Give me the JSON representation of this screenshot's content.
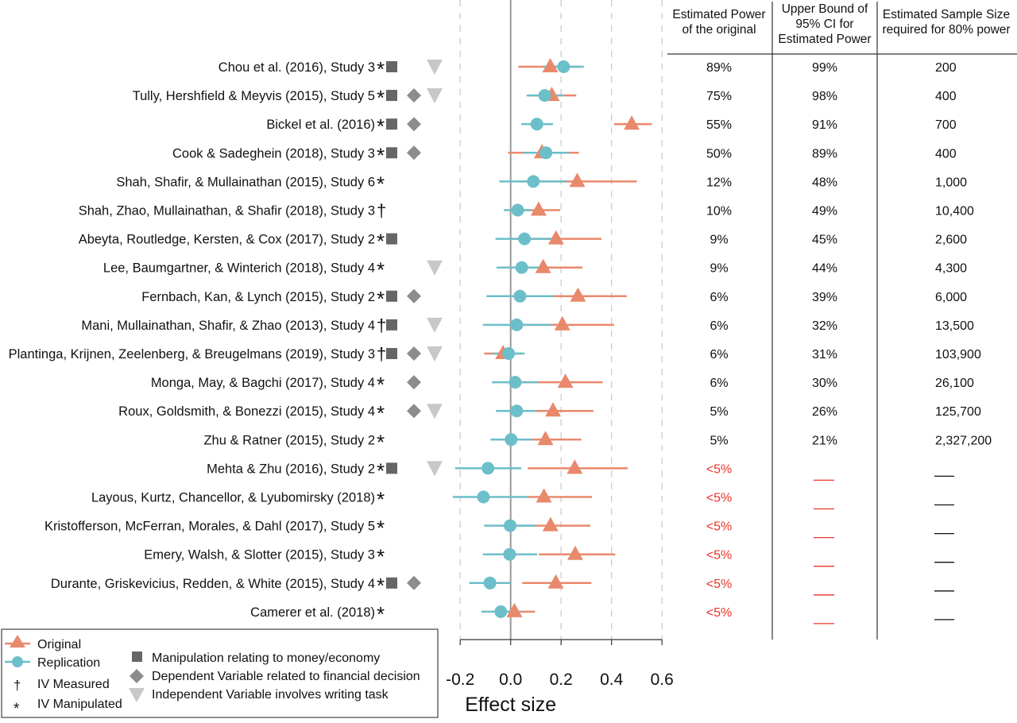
{
  "chart_data": {
    "type": "forest",
    "xlabel": "Effect size",
    "xlim": [
      -0.2,
      0.6
    ],
    "xticks": [
      "-0.2",
      "0.0",
      "0.2",
      "0.4",
      "0.6"
    ],
    "xtick_values": [
      -0.2,
      0,
      0.2,
      0.4,
      0.6
    ],
    "grid": "dashed vertical",
    "colors": {
      "original": "#e8896c",
      "replication": "#6cbfc9",
      "red_text": "#e8352a",
      "marker": "#666666",
      "diamond": "#8c8c8c",
      "writing": "#c8c8c8"
    },
    "table_headers": [
      [
        "Estimated Power",
        "of the original"
      ],
      [
        "Upper Bound of",
        "95% CI for",
        "Estimated Power"
      ],
      [
        "Estimated Sample Size",
        "required for 80% power"
      ]
    ],
    "studies": [
      {
        "name": "Chou et al. (2016), Study 3",
        "mark": "*",
        "money": true,
        "dv": false,
        "writing": true,
        "original": [
          0.157,
          0.03,
          0.28
        ],
        "replication": [
          0.21,
          0.13,
          0.29
        ],
        "power": "89%",
        "upper": "99%",
        "sample": "200"
      },
      {
        "name": "Tully, Hershfield & Meyvis (2015), Study 5",
        "mark": "*",
        "money": true,
        "dv": true,
        "writing": true,
        "original": [
          0.163,
          0.07,
          0.26
        ],
        "replication": [
          0.135,
          0.063,
          0.21
        ],
        "power": "75%",
        "upper": "98%",
        "sample": "400"
      },
      {
        "name": "Bickel et al. (2016)",
        "mark": "*",
        "money": true,
        "dv": true,
        "writing": false,
        "original": [
          0.48,
          0.41,
          0.56
        ],
        "replication": [
          0.104,
          0.042,
          0.168
        ],
        "power": "55%",
        "upper": "91%",
        "sample": "700"
      },
      {
        "name": "Cook & Sadeghein (2018), Study 3",
        "mark": "*",
        "money": true,
        "dv": true,
        "writing": false,
        "original": [
          0.124,
          -0.01,
          0.27
        ],
        "replication": [
          0.14,
          0.05,
          0.23
        ],
        "power": "50%",
        "upper": "89%",
        "sample": "400"
      },
      {
        "name": "Shah, Shafir, & Mullainathan (2015), Study 6",
        "mark": "*",
        "money": false,
        "dv": false,
        "writing": false,
        "original": [
          0.264,
          0.03,
          0.5
        ],
        "replication": [
          0.09,
          -0.045,
          0.22
        ],
        "power": "12%",
        "upper": "48%",
        "sample": "1,000"
      },
      {
        "name": "Shah, Zhao, Mullainathan, & Shafir (2018), Study 3",
        "mark": "†",
        "money": false,
        "dv": false,
        "writing": false,
        "original": [
          0.111,
          0.02,
          0.196
        ],
        "replication": [
          0.028,
          -0.027,
          0.08
        ],
        "power": "10%",
        "upper": "49%",
        "sample": "10,400"
      },
      {
        "name": "Abeyta, Routledge, Kersten, & Cox (2017), Study 2",
        "mark": "*",
        "money": true,
        "dv": false,
        "writing": false,
        "original": [
          0.18,
          0.0,
          0.36
        ],
        "replication": [
          0.055,
          -0.06,
          0.17
        ],
        "power": "9%",
        "upper": "45%",
        "sample": "2,600"
      },
      {
        "name": "Lee, Baumgartner, & Winterich (2018), Study 4",
        "mark": "*",
        "money": false,
        "dv": false,
        "writing": true,
        "original": [
          0.129,
          -0.03,
          0.285
        ],
        "replication": [
          0.044,
          -0.056,
          0.14
        ],
        "power": "9%",
        "upper": "44%",
        "sample": "4,300"
      },
      {
        "name": "Fernbach, Kan, & Lynch (2015), Study 2",
        "mark": "*",
        "money": true,
        "dv": true,
        "writing": false,
        "original": [
          0.267,
          0.07,
          0.46
        ],
        "replication": [
          0.037,
          -0.096,
          0.17
        ],
        "power": "6%",
        "upper": "39%",
        "sample": "6,000"
      },
      {
        "name": "Mani, Mullainathan, Shafir, & Zhao (2013), Study 4",
        "mark": "†",
        "money": true,
        "dv": false,
        "writing": true,
        "original": [
          0.205,
          0.0,
          0.41
        ],
        "replication": [
          0.024,
          -0.11,
          0.16
        ],
        "power": "6%",
        "upper": "32%",
        "sample": "13,500"
      },
      {
        "name": "Plantinga, Krijnen, Zeelenberg, & Breugelmans (2019), Study 3",
        "mark": "†",
        "money": true,
        "dv": true,
        "writing": true,
        "original": [
          -0.03,
          -0.105,
          0.045
        ],
        "replication": [
          -0.008,
          -0.07,
          0.055
        ],
        "power": "6%",
        "upper": "31%",
        "sample": "103,900"
      },
      {
        "name": "Monga, May, & Bagchi (2017), Study 4",
        "mark": "*",
        "money": false,
        "dv": true,
        "writing": false,
        "original": [
          0.217,
          0.02,
          0.365
        ],
        "replication": [
          0.018,
          -0.074,
          0.11
        ],
        "power": "6%",
        "upper": "30%",
        "sample": "26,100"
      },
      {
        "name": "Roux, Goldsmith, & Bonezzi (2015), Study 4",
        "mark": "*",
        "money": false,
        "dv": true,
        "writing": true,
        "original": [
          0.168,
          0.01,
          0.328
        ],
        "replication": [
          0.024,
          -0.058,
          0.1
        ],
        "power": "5%",
        "upper": "26%",
        "sample": "125,700"
      },
      {
        "name": "Zhu & Ratner (2015), Study 2",
        "mark": "*",
        "money": false,
        "dv": false,
        "writing": false,
        "original": [
          0.138,
          0.0,
          0.28
        ],
        "replication": [
          0.002,
          -0.08,
          0.085
        ],
        "power": "5%",
        "upper": "21%",
        "sample": "2,327,200"
      },
      {
        "name": "Mehta & Zhu (2016), Study 2",
        "mark": "*",
        "money": true,
        "dv": false,
        "writing": true,
        "original": [
          0.254,
          0.068,
          0.464
        ],
        "replication": [
          -0.09,
          -0.22,
          0.042
        ],
        "power": "<5%",
        "upper": "",
        "sample": ""
      },
      {
        "name": "Layous, Kurtz, Chancellor, & Lyubomirsky (2018)",
        "mark": "*",
        "money": false,
        "dv": false,
        "writing": false,
        "original": [
          0.132,
          0.068,
          0.322
        ],
        "replication": [
          -0.108,
          -0.229,
          0.07
        ],
        "power": "<5%",
        "upper": "",
        "sample": ""
      },
      {
        "name": "Kristofferson, McFerran, Morales, & Dahl (2017), Study 5",
        "mark": "*",
        "money": false,
        "dv": false,
        "writing": false,
        "original": [
          0.158,
          0.0,
          0.316
        ],
        "replication": [
          -0.002,
          -0.105,
          0.1
        ],
        "power": "<5%",
        "upper": "",
        "sample": ""
      },
      {
        "name": "Emery, Walsh, & Slotter (2015), Study 3",
        "mark": "*",
        "money": false,
        "dv": false,
        "writing": false,
        "original": [
          0.256,
          0.112,
          0.415
        ],
        "replication": [
          -0.004,
          -0.11,
          0.105
        ],
        "power": "<5%",
        "upper": "",
        "sample": ""
      },
      {
        "name": "Durante, Griskevicius, Redden, & White (2015), Study 4",
        "mark": "*",
        "money": true,
        "dv": true,
        "writing": false,
        "original": [
          0.179,
          0.046,
          0.32
        ],
        "replication": [
          -0.082,
          -0.164,
          0.0
        ],
        "power": "<5%",
        "upper": "",
        "sample": ""
      },
      {
        "name": "Camerer et al. (2018)",
        "mark": "*",
        "money": false,
        "dv": false,
        "writing": false,
        "original": [
          0.015,
          -0.05,
          0.097
        ],
        "replication": [
          -0.039,
          -0.116,
          0.04
        ],
        "power": "<5%",
        "upper": "",
        "sample": ""
      }
    ],
    "legend": {
      "original": "Original",
      "replication": "Replication",
      "dagger_symbol": "†",
      "dagger": "IV Measured",
      "star_symbol": "*",
      "star": "IV Manipulated",
      "money": "Manipulation relating to money/economy",
      "dv": "Dependent Variable related to financial decision",
      "writing": "Independent Variable involves writing task"
    }
  }
}
